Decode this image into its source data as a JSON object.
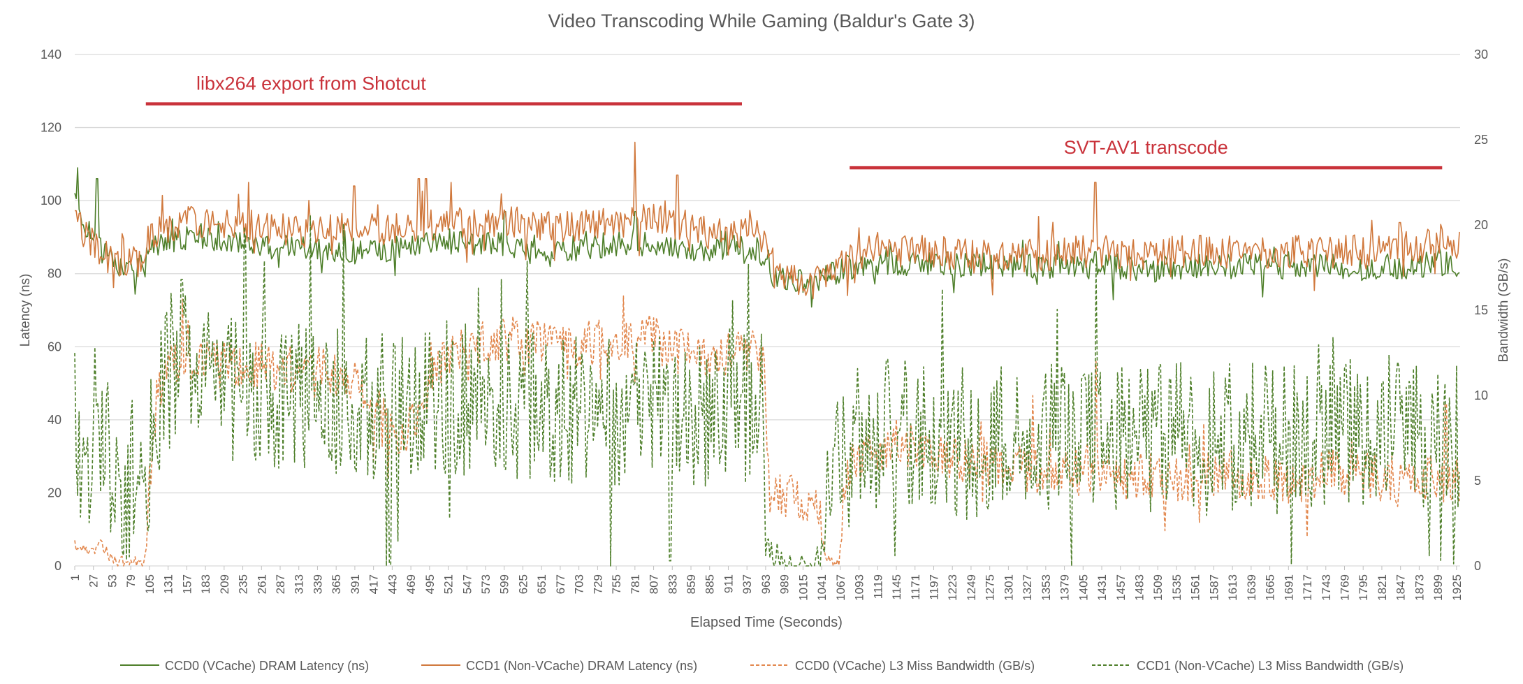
{
  "chart_data": {
    "type": "line",
    "title": "Video Transcoding While Gaming (Baldur's Gate 3)",
    "xlabel": "Elapsed Time (Seconds)",
    "ylabel": "Latency (ns)",
    "y2label": "Bandwidth (GB/s)",
    "ylim": [
      0,
      140
    ],
    "y_ticks": [
      0,
      20,
      40,
      60,
      80,
      100,
      120,
      140
    ],
    "y2lim": [
      0,
      30
    ],
    "y2_ticks": [
      0,
      5,
      10,
      15,
      20,
      25,
      30
    ],
    "x_range": [
      1,
      1930
    ],
    "x_ticks": [
      1,
      27,
      53,
      79,
      105,
      131,
      157,
      183,
      209,
      235,
      261,
      287,
      313,
      339,
      365,
      391,
      417,
      443,
      469,
      495,
      521,
      547,
      573,
      599,
      625,
      651,
      677,
      703,
      729,
      755,
      781,
      807,
      833,
      859,
      885,
      911,
      937,
      963,
      989,
      1015,
      1041,
      1067,
      1093,
      1119,
      1145,
      1171,
      1197,
      1223,
      1249,
      1275,
      1301,
      1327,
      1353,
      1379,
      1405,
      1431,
      1457,
      1483,
      1509,
      1535,
      1561,
      1587,
      1613,
      1639,
      1665,
      1691,
      1717,
      1743,
      1769,
      1795,
      1821,
      1847,
      1873,
      1899,
      1925
    ],
    "legend_position": "bottom",
    "series": [
      {
        "name": "CCD0 (VCache) DRAM Latency (ns)",
        "axis": "left",
        "color": "#4e7f2a",
        "dash": "solid",
        "points": [
          [
            1,
            100
          ],
          [
            10,
            96
          ],
          [
            20,
            92
          ],
          [
            30,
            90
          ],
          [
            40,
            86
          ],
          [
            50,
            84
          ],
          [
            60,
            83
          ],
          [
            70,
            82
          ],
          [
            80,
            81
          ],
          [
            95,
            83
          ],
          [
            105,
            86
          ],
          [
            130,
            89
          ],
          [
            160,
            90
          ],
          [
            200,
            89
          ],
          [
            250,
            88
          ],
          [
            300,
            87
          ],
          [
            350,
            87
          ],
          [
            400,
            86
          ],
          [
            450,
            87
          ],
          [
            500,
            88
          ],
          [
            550,
            88
          ],
          [
            600,
            88
          ],
          [
            650,
            87
          ],
          [
            700,
            87
          ],
          [
            750,
            88
          ],
          [
            800,
            88
          ],
          [
            850,
            87
          ],
          [
            900,
            87
          ],
          [
            950,
            87
          ],
          [
            965,
            84
          ],
          [
            975,
            79
          ],
          [
            1000,
            78
          ],
          [
            1030,
            78
          ],
          [
            1045,
            79
          ],
          [
            1055,
            80
          ],
          [
            1070,
            81
          ],
          [
            1100,
            82
          ],
          [
            1150,
            83
          ],
          [
            1200,
            83
          ],
          [
            1250,
            82
          ],
          [
            1300,
            82
          ],
          [
            1350,
            82
          ],
          [
            1400,
            82
          ],
          [
            1450,
            82
          ],
          [
            1500,
            81
          ],
          [
            1550,
            82
          ],
          [
            1600,
            82
          ],
          [
            1650,
            82
          ],
          [
            1700,
            82
          ],
          [
            1750,
            82
          ],
          [
            1800,
            82
          ],
          [
            1850,
            82
          ],
          [
            1900,
            83
          ],
          [
            1930,
            82
          ]
        ],
        "noise": 3.5,
        "spikes": [
          [
            5,
            109
          ],
          [
            32,
            106
          ],
          [
            137,
            95
          ],
          [
            600,
            97
          ],
          [
            782,
            97
          ],
          [
            1076,
            85
          ],
          [
            1422,
            86
          ]
        ]
      },
      {
        "name": "CCD1 (Non-VCache) DRAM Latency (ns)",
        "axis": "left",
        "color": "#d0783c",
        "dash": "solid",
        "points": [
          [
            1,
            94
          ],
          [
            10,
            92
          ],
          [
            20,
            90
          ],
          [
            30,
            88
          ],
          [
            40,
            86
          ],
          [
            50,
            84
          ],
          [
            60,
            84
          ],
          [
            70,
            83
          ],
          [
            80,
            83
          ],
          [
            95,
            84
          ],
          [
            105,
            90
          ],
          [
            130,
            93
          ],
          [
            160,
            94
          ],
          [
            200,
            93
          ],
          [
            250,
            93
          ],
          [
            300,
            92
          ],
          [
            350,
            92
          ],
          [
            400,
            92
          ],
          [
            450,
            92
          ],
          [
            500,
            93
          ],
          [
            550,
            94
          ],
          [
            600,
            95
          ],
          [
            650,
            93
          ],
          [
            700,
            93
          ],
          [
            750,
            94
          ],
          [
            800,
            95
          ],
          [
            850,
            93
          ],
          [
            900,
            92
          ],
          [
            950,
            91
          ],
          [
            965,
            88
          ],
          [
            975,
            80
          ],
          [
            1000,
            78
          ],
          [
            1030,
            77
          ],
          [
            1045,
            79
          ],
          [
            1055,
            82
          ],
          [
            1070,
            84
          ],
          [
            1100,
            86
          ],
          [
            1150,
            86
          ],
          [
            1200,
            86
          ],
          [
            1250,
            85
          ],
          [
            1300,
            85
          ],
          [
            1350,
            85
          ],
          [
            1400,
            86
          ],
          [
            1450,
            86
          ],
          [
            1500,
            85
          ],
          [
            1550,
            86
          ],
          [
            1600,
            86
          ],
          [
            1650,
            86
          ],
          [
            1700,
            86
          ],
          [
            1750,
            86
          ],
          [
            1800,
            86
          ],
          [
            1850,
            87
          ],
          [
            1900,
            88
          ],
          [
            1930,
            87
          ]
        ],
        "noise": 4.5,
        "spikes": [
          [
            243,
            105
          ],
          [
            390,
            104
          ],
          [
            480,
            106
          ],
          [
            490,
            106
          ],
          [
            525,
            105
          ],
          [
            781,
            116
          ],
          [
            840,
            107
          ],
          [
            1422,
            105
          ],
          [
            1846,
            94
          ]
        ]
      },
      {
        "name": "CCD0 (VCache) L3 Miss Bandwidth (GB/s)",
        "axis": "right",
        "color": "#e2874d",
        "dash": "dashed",
        "points": [
          [
            1,
            1.2
          ],
          [
            20,
            0.9
          ],
          [
            30,
            1.0
          ],
          [
            40,
            1.3
          ],
          [
            50,
            0.5
          ],
          [
            60,
            0.3
          ],
          [
            70,
            0.2
          ],
          [
            90,
            0.2
          ],
          [
            100,
            0.4
          ],
          [
            105,
            5
          ],
          [
            115,
            10
          ],
          [
            130,
            12
          ],
          [
            160,
            12.3
          ],
          [
            200,
            12
          ],
          [
            250,
            11.8
          ],
          [
            300,
            11.5
          ],
          [
            350,
            11.5
          ],
          [
            400,
            10.8
          ],
          [
            430,
            8.5
          ],
          [
            460,
            7.5
          ],
          [
            480,
            9
          ],
          [
            500,
            11.5
          ],
          [
            550,
            13
          ],
          [
            600,
            13.3
          ],
          [
            650,
            13
          ],
          [
            700,
            13
          ],
          [
            750,
            13.2
          ],
          [
            800,
            13.4
          ],
          [
            850,
            12.5
          ],
          [
            900,
            12.3
          ],
          [
            950,
            12.6
          ],
          [
            962,
            11.5
          ],
          [
            968,
            4.5
          ],
          [
            1000,
            4.2
          ],
          [
            1030,
            3.6
          ],
          [
            1040,
            3.2
          ],
          [
            1045,
            0.3
          ],
          [
            1065,
            0.3
          ],
          [
            1075,
            5.5
          ],
          [
            1100,
            6.5
          ],
          [
            1150,
            7.2
          ],
          [
            1200,
            6.8
          ],
          [
            1250,
            6
          ],
          [
            1300,
            6
          ],
          [
            1350,
            5.5
          ],
          [
            1400,
            5.5
          ],
          [
            1450,
            5.2
          ],
          [
            1500,
            5.2
          ],
          [
            1550,
            5
          ],
          [
            1600,
            5.5
          ],
          [
            1650,
            5.2
          ],
          [
            1700,
            5
          ],
          [
            1750,
            5.5
          ],
          [
            1800,
            5.3
          ],
          [
            1850,
            5
          ],
          [
            1900,
            5.2
          ],
          [
            1930,
            5
          ]
        ],
        "noise": 1.4,
        "spikes": [
          [
            1423,
            12
          ],
          [
            1335,
            10
          ],
          [
            1910,
            9.5
          ]
        ]
      },
      {
        "name": "CCD1 (Non-VCache) L3 Miss Bandwidth (GB/s)",
        "axis": "right",
        "color": "#4e7f2a",
        "dash": "dashed",
        "points": [
          [
            1,
            8
          ],
          [
            20,
            6
          ],
          [
            30,
            8
          ],
          [
            45,
            7
          ],
          [
            55,
            4.5
          ],
          [
            70,
            4
          ],
          [
            90,
            4
          ],
          [
            100,
            4
          ],
          [
            105,
            6
          ],
          [
            120,
            10
          ],
          [
            140,
            12
          ],
          [
            200,
            11
          ],
          [
            300,
            10
          ],
          [
            400,
            9.5
          ],
          [
            500,
            10
          ],
          [
            600,
            9.5
          ],
          [
            700,
            9
          ],
          [
            800,
            9
          ],
          [
            900,
            9
          ],
          [
            960,
            9.5
          ],
          [
            962,
            4
          ],
          [
            968,
            0.3
          ],
          [
            1040,
            0.3
          ],
          [
            1045,
            5
          ],
          [
            1065,
            5.5
          ],
          [
            1080,
            6
          ],
          [
            1100,
            7
          ],
          [
            1150,
            8
          ],
          [
            1200,
            7.8
          ],
          [
            1250,
            7
          ],
          [
            1300,
            7.8
          ],
          [
            1350,
            7.5
          ],
          [
            1400,
            7.5
          ],
          [
            1450,
            7.5
          ],
          [
            1500,
            7.5
          ],
          [
            1550,
            7.5
          ],
          [
            1600,
            7.5
          ],
          [
            1650,
            7.5
          ],
          [
            1700,
            7.5
          ],
          [
            1750,
            8
          ],
          [
            1800,
            8
          ],
          [
            1850,
            8
          ],
          [
            1900,
            7.5
          ],
          [
            1930,
            7.5
          ]
        ],
        "noise": 4.5,
        "spikes": [
          [
            150,
            16.8
          ],
          [
            595,
            16.8
          ],
          [
            563,
            16.3
          ],
          [
            1512,
            11.8
          ],
          [
            1425,
            10.6
          ],
          [
            1822,
            10.8
          ],
          [
            1695,
            0.1
          ],
          [
            1887,
            0.6
          ],
          [
            440,
            0.1
          ],
          [
            830,
            0.3
          ]
        ]
      }
    ],
    "annotations": [
      {
        "label": "libx264 export from Shotcut",
        "x_start": 100,
        "x_end": 930,
        "y": 126.5,
        "color": "#c9323a"
      },
      {
        "label": "SVT-AV1 transcode",
        "x_start": 1080,
        "x_end": 1905,
        "y": 109,
        "color": "#c9323a"
      }
    ]
  }
}
